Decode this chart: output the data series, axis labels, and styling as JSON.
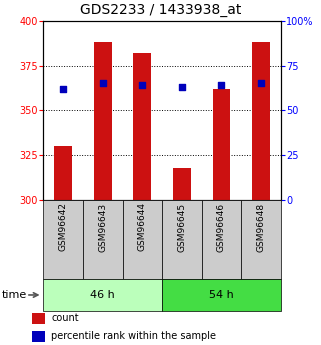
{
  "title": "GDS2233 / 1433938_at",
  "samples": [
    "GSM96642",
    "GSM96643",
    "GSM96644",
    "GSM96645",
    "GSM96646",
    "GSM96648"
  ],
  "count_values": [
    330,
    388,
    382,
    318,
    362,
    388
  ],
  "percentile_values": [
    62,
    65,
    64,
    63,
    64,
    65
  ],
  "count_base": 300,
  "ylim_left": [
    300,
    400
  ],
  "ylim_right": [
    0,
    100
  ],
  "yticks_left": [
    300,
    325,
    350,
    375,
    400
  ],
  "yticks_right": [
    0,
    25,
    50,
    75,
    100
  ],
  "groups": [
    {
      "label": "46 h",
      "color": "#AAFFAA",
      "color2": "#55EE55",
      "start": 0,
      "end": 2
    },
    {
      "label": "54 h",
      "color": "#44DD44",
      "color2": "#22CC22",
      "start": 3,
      "end": 5
    }
  ],
  "bar_color": "#CC1111",
  "dot_color": "#0000BB",
  "bar_width": 0.45,
  "background_color": "#ffffff",
  "plot_bg_color": "#ffffff",
  "title_fontsize": 10,
  "tick_label_fontsize": 7,
  "sample_fontsize": 6.5,
  "legend_fontsize": 7,
  "group_fontsize": 8,
  "gray_box_color": "#CCCCCC",
  "group1_color": "#BBFFBB",
  "group2_color": "#44DD44"
}
